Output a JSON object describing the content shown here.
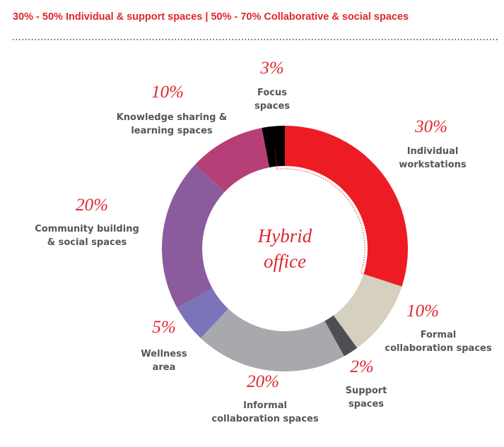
{
  "header": {
    "title": "30% - 50% Individual & support spaces | 50% - 70% Collaborative & social spaces"
  },
  "chart_data": {
    "type": "pie",
    "center_label": "Hybrid\noffice",
    "categories": [
      "Individual\nworkstations",
      "Formal\ncollaboration spaces",
      "Support\nspaces",
      "Informal\ncollaboration spaces",
      "Wellness\narea",
      "Community building\n& social spaces",
      "Knowledge sharing &\nlearning spaces",
      "Focus\nspaces"
    ],
    "values": [
      30,
      10,
      2,
      20,
      5,
      20,
      10,
      3
    ],
    "value_labels": [
      "30%",
      "10%",
      "2%",
      "20%",
      "5%",
      "20%",
      "10%",
      "3%"
    ],
    "colors": [
      "#ed1c24",
      "#d5d0c0",
      "#4d4f54",
      "#a7a9ac",
      "#7b74bb",
      "#8b5b9e",
      "#b63f78",
      "#000000"
    ]
  }
}
